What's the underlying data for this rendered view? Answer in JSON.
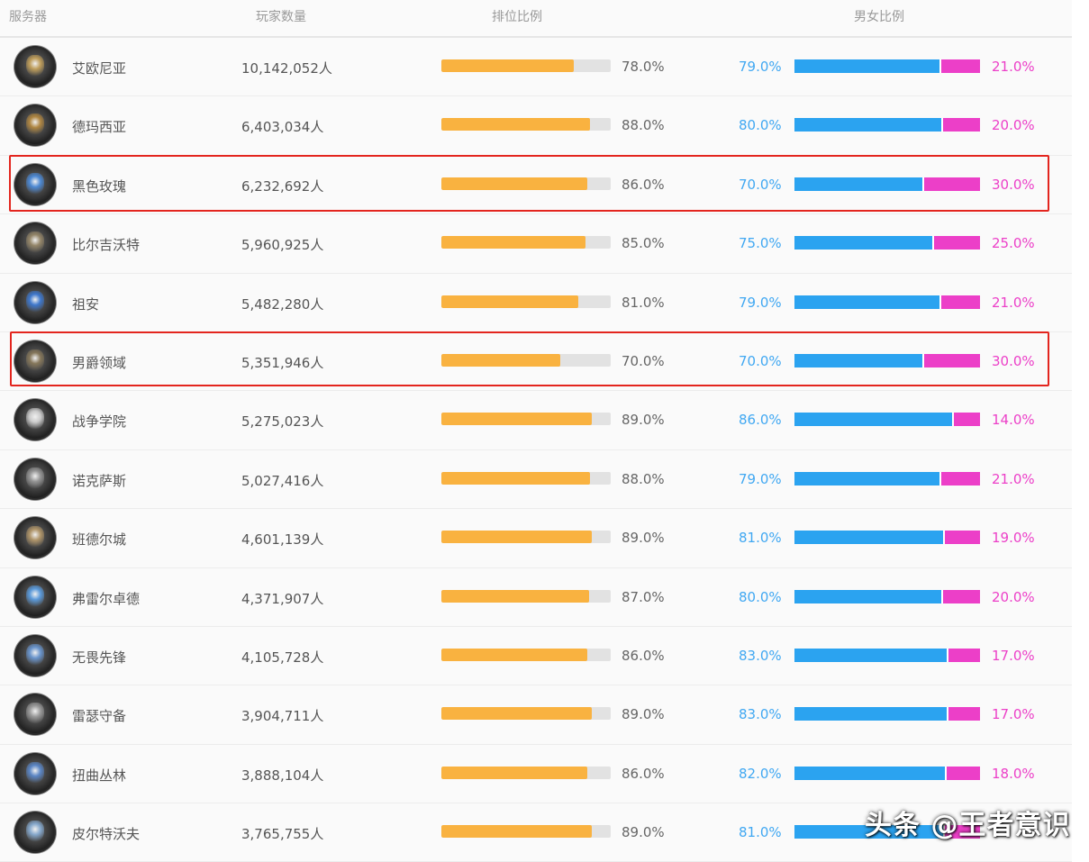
{
  "headers": {
    "server": "服务器",
    "players": "玩家数量",
    "rank": "排位比例",
    "gender": "男女比例"
  },
  "colors": {
    "rank_fill": "#f9b240",
    "rank_track": "#e2e2e2",
    "male": "#2ba3f0",
    "female": "#ec3fc8",
    "highlight": "#e3251e"
  },
  "rows": [
    {
      "icon": "server-emblem-icon",
      "name": "艾欧尼亚",
      "players": "10,142,052人",
      "rank_pct": "78.0%",
      "rank_value": 78,
      "male_pct": "79.0%",
      "male_value": 79,
      "female_pct": "21.0%"
    },
    {
      "icon": "server-emblem-icon",
      "name": "德玛西亚",
      "players": "6,403,034人",
      "rank_pct": "88.0%",
      "rank_value": 88,
      "male_pct": "80.0%",
      "male_value": 80,
      "female_pct": "20.0%"
    },
    {
      "icon": "server-emblem-icon",
      "name": "黑色玫瑰",
      "players": "6,232,692人",
      "rank_pct": "86.0%",
      "rank_value": 86,
      "male_pct": "70.0%",
      "male_value": 70,
      "female_pct": "30.0%"
    },
    {
      "icon": "server-emblem-icon",
      "name": "比尔吉沃特",
      "players": "5,960,925人",
      "rank_pct": "85.0%",
      "rank_value": 85,
      "male_pct": "75.0%",
      "male_value": 75,
      "female_pct": "25.0%"
    },
    {
      "icon": "server-emblem-icon",
      "name": "祖安",
      "players": "5,482,280人",
      "rank_pct": "81.0%",
      "rank_value": 81,
      "male_pct": "79.0%",
      "male_value": 79,
      "female_pct": "21.0%"
    },
    {
      "icon": "server-emblem-icon",
      "name": "男爵领域",
      "players": "5,351,946人",
      "rank_pct": "70.0%",
      "rank_value": 70,
      "male_pct": "70.0%",
      "male_value": 70,
      "female_pct": "30.0%"
    },
    {
      "icon": "server-emblem-icon",
      "name": "战争学院",
      "players": "5,275,023人",
      "rank_pct": "89.0%",
      "rank_value": 89,
      "male_pct": "86.0%",
      "male_value": 86,
      "female_pct": "14.0%"
    },
    {
      "icon": "server-emblem-icon",
      "name": "诺克萨斯",
      "players": "5,027,416人",
      "rank_pct": "88.0%",
      "rank_value": 88,
      "male_pct": "79.0%",
      "male_value": 79,
      "female_pct": "21.0%"
    },
    {
      "icon": "server-emblem-icon",
      "name": "班德尔城",
      "players": "4,601,139人",
      "rank_pct": "89.0%",
      "rank_value": 89,
      "male_pct": "81.0%",
      "male_value": 81,
      "female_pct": "19.0%"
    },
    {
      "icon": "server-emblem-icon",
      "name": "弗雷尔卓德",
      "players": "4,371,907人",
      "rank_pct": "87.0%",
      "rank_value": 87,
      "male_pct": "80.0%",
      "male_value": 80,
      "female_pct": "20.0%"
    },
    {
      "icon": "server-emblem-icon",
      "name": "无畏先锋",
      "players": "4,105,728人",
      "rank_pct": "86.0%",
      "rank_value": 86,
      "male_pct": "83.0%",
      "male_value": 83,
      "female_pct": "17.0%"
    },
    {
      "icon": "server-emblem-icon",
      "name": "雷瑟守备",
      "players": "3,904,711人",
      "rank_pct": "89.0%",
      "rank_value": 89,
      "male_pct": "83.0%",
      "male_value": 83,
      "female_pct": "17.0%"
    },
    {
      "icon": "server-emblem-icon",
      "name": "扭曲丛林",
      "players": "3,888,104人",
      "rank_pct": "86.0%",
      "rank_value": 86,
      "male_pct": "82.0%",
      "male_value": 82,
      "female_pct": "18.0%"
    },
    {
      "icon": "server-emblem-icon",
      "name": "皮尔特沃夫",
      "players": "3,765,755人",
      "rank_pct": "89.0%",
      "rank_value": 89,
      "male_pct": "81.0%",
      "male_value": 81,
      "female_pct": ""
    }
  ],
  "highlighted_rows": [
    "黑色玫瑰",
    "男爵领域"
  ],
  "watermark": "头条 @王者意识"
}
